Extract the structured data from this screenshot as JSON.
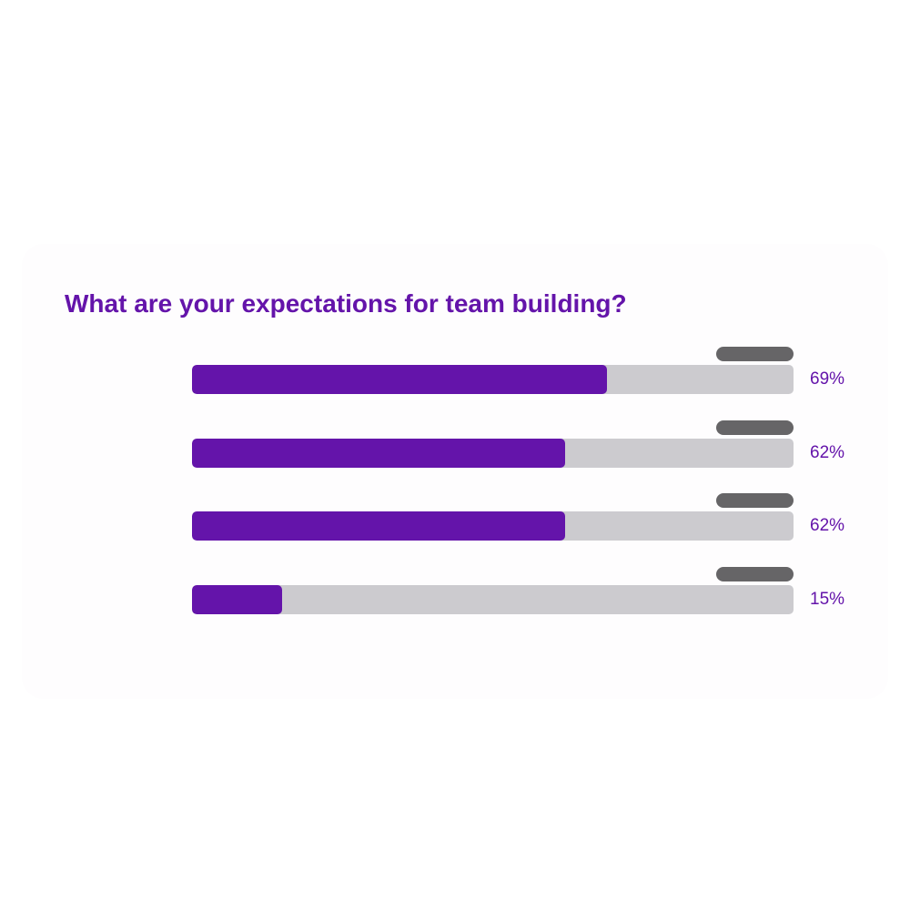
{
  "colors": {
    "accent": "#6414aa",
    "track": "#cccbcf",
    "tag": "#666567",
    "card_bg": "#fefdfe"
  },
  "chart_data": {
    "type": "bar",
    "orientation": "horizontal",
    "title": "What are your expectations for team building?",
    "xlim": [
      0,
      100
    ],
    "unit": "%",
    "grid": false,
    "categories": [
      "",
      "",
      "",
      ""
    ],
    "values": [
      69,
      62,
      62,
      15
    ],
    "data_labels": [
      "69%",
      "62%",
      "62%",
      "15%"
    ]
  }
}
